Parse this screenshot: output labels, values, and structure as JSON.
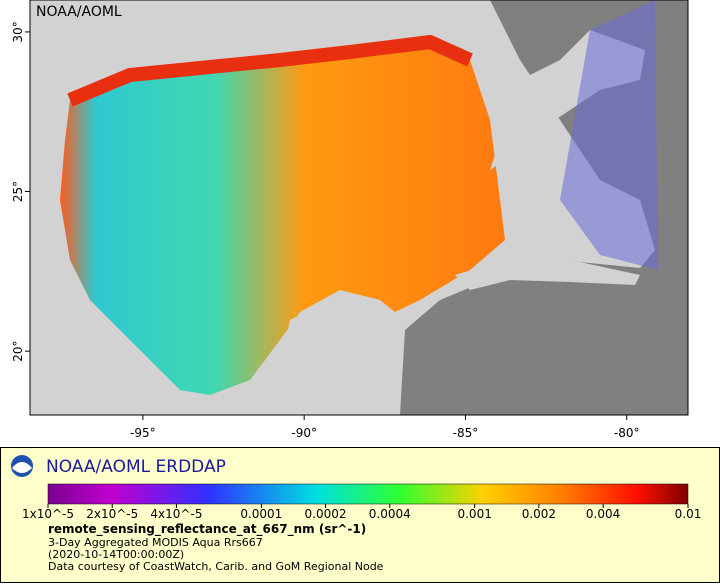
{
  "map": {
    "watermark": "NOAA/AOML",
    "xlim": [
      -98.5,
      -78.1
    ],
    "ylim": [
      18,
      31
    ],
    "xticks": [
      {
        "value": -95,
        "label": "-95°"
      },
      {
        "value": -90,
        "label": "-90°"
      },
      {
        "value": -85,
        "label": "-85°"
      },
      {
        "value": -80,
        "label": "-80°"
      }
    ],
    "yticks": [
      {
        "value": 30,
        "label": "30°"
      },
      {
        "value": 25,
        "label": "25°"
      },
      {
        "value": 20,
        "label": "20°"
      }
    ]
  },
  "legend": {
    "title": "NOAA/AOML ERDDAP",
    "log": true,
    "clim": [
      1e-05,
      0.01
    ],
    "ticks": [
      {
        "value": 1e-05,
        "label": "1x10^-5"
      },
      {
        "value": 2e-05,
        "label": "2x10^-5"
      },
      {
        "value": 4e-05,
        "label": "4x10^-5"
      },
      0.0001,
      0.0002,
      0.0004,
      0.001,
      0.002,
      0.004,
      0.01
    ],
    "variable": "remote_sensing_reflectance_at_667_nm (sr^-1)",
    "lines": [
      "3-Day Aggregated MODIS Aqua Rrs667",
      "(2020-10-14T00:00:00Z)",
      "Data courtesy of CoastWatch, Carib. and GoM Regional Node"
    ]
  }
}
